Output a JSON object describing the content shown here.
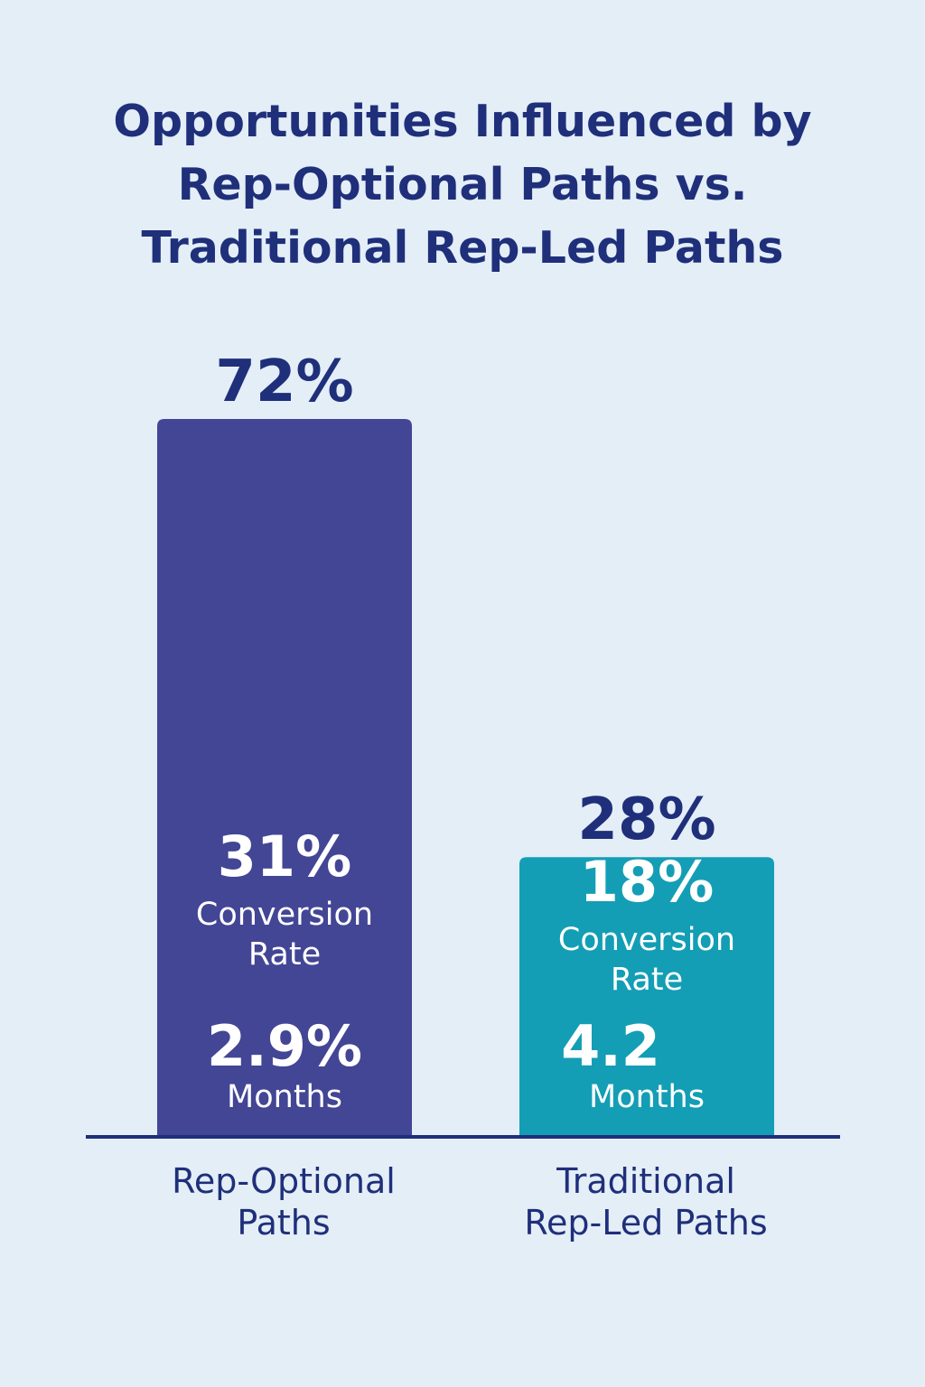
{
  "title_lines": [
    "Opportunities Influenced by",
    "Rep-Optional Paths vs.",
    "Traditional Rep-Led Paths"
  ],
  "chart_data": {
    "type": "bar",
    "title": "Opportunities Influenced by Rep-Optional Paths vs. Traditional Rep-Led Paths",
    "categories": [
      "Rep-Optional Paths",
      "Traditional Rep-Led Paths"
    ],
    "category_label_lines": [
      [
        "Rep-Optional",
        "Paths"
      ],
      [
        "Traditional",
        "Rep-Led Paths"
      ]
    ],
    "values": [
      72,
      28
    ],
    "value_labels": [
      "72%",
      "28%"
    ],
    "colors": [
      "#434595",
      "#139eb5"
    ],
    "ylim": [
      0,
      72
    ],
    "grid": false,
    "annotations": [
      {
        "conversion_rate": "31%",
        "conversion_label": [
          "Conversion",
          "Rate"
        ],
        "cycle": "2.9%",
        "cycle_label": "Months"
      },
      {
        "conversion_rate": "18%",
        "conversion_label": [
          "Conversion",
          "Rate"
        ],
        "cycle": "4.2",
        "cycle_label": "Months"
      }
    ]
  }
}
